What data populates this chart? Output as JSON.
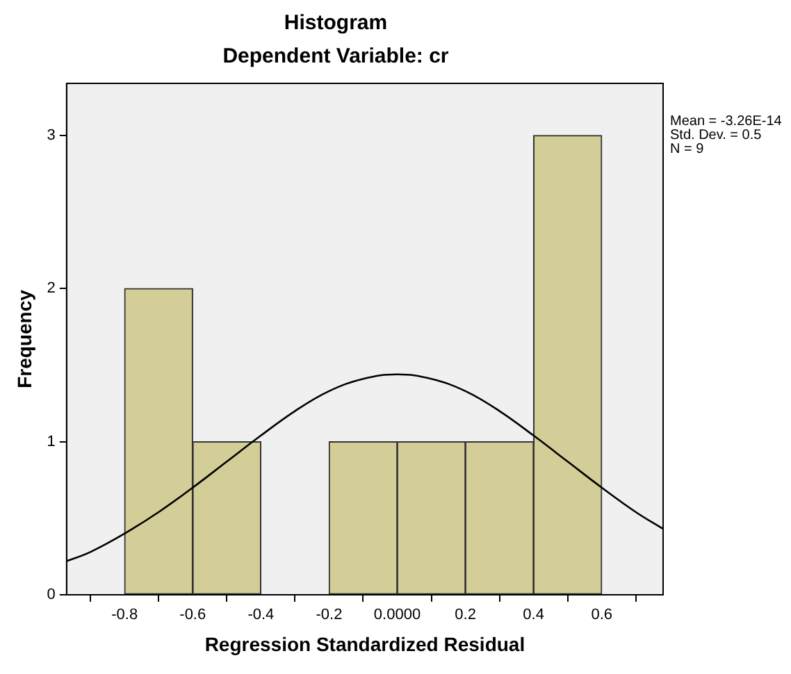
{
  "chart_data": {
    "type": "histogram",
    "title": "Histogram",
    "subtitle": "Dependent Variable: cr",
    "xlabel": "Regression Standardized Residual",
    "ylabel": "Frequency",
    "bins": [
      -0.8,
      -0.6,
      -0.4,
      -0.2,
      0,
      0.2,
      0.4,
      0.6
    ],
    "values": [
      2,
      1,
      0,
      1,
      1,
      1,
      3
    ],
    "color": "#d3ce97",
    "series": [
      {
        "type": "line",
        "color": "#000000",
        "x": [
          -0.97,
          -0.9,
          -0.8,
          -0.7,
          -0.6,
          -0.5,
          -0.4,
          -0.3,
          -0.2,
          -0.1,
          0,
          0.1,
          0.2,
          0.3,
          0.4,
          0.5,
          0.6,
          0.7,
          0.78
        ],
        "values": [
          0.22,
          0.28,
          0.4,
          0.54,
          0.7,
          0.87,
          1.04,
          1.2,
          1.33,
          1.41,
          1.44,
          1.41,
          1.33,
          1.2,
          1.04,
          0.87,
          0.7,
          0.54,
          0.43
        ]
      }
    ],
    "xlim": [
      -0.97,
      0.78
    ],
    "xticks": [
      -0.8,
      -0.6,
      -0.4,
      -0.2,
      {
        "value": 0,
        "label": "0.0000"
      },
      0.2,
      0.4,
      0.6
    ],
    "ylim": [
      0,
      3.34
    ],
    "yticks": [
      0,
      1,
      2,
      3
    ],
    "grid": false,
    "legend": false,
    "annotations": [
      "Mean = -3.26E-14\nStd. Dev. = 0.5\nN = 9"
    ]
  }
}
